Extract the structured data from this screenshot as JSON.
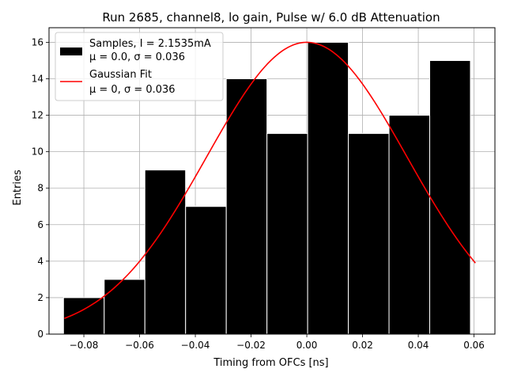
{
  "chart_data": {
    "type": "bar",
    "title": "Run 2685, channel8, lo gain, Pulse w/ 6.0 dB Attenuation",
    "xlabel": "Timing from OFCs [ns]",
    "ylabel": "Entries",
    "xlim": [
      -0.0925,
      0.0675
    ],
    "ylim": [
      0,
      16.8
    ],
    "grid": true,
    "xticks": [
      -0.08,
      -0.06,
      -0.04,
      -0.02,
      0.0,
      0.02,
      0.04,
      0.06
    ],
    "xtick_labels": [
      "−0.08",
      "−0.06",
      "−0.04",
      "−0.02",
      "0.00",
      "0.02",
      "0.04",
      "0.06"
    ],
    "yticks": [
      0,
      2,
      4,
      6,
      8,
      10,
      12,
      14,
      16
    ],
    "ytick_labels": [
      "0",
      "2",
      "4",
      "6",
      "8",
      "10",
      "12",
      "14",
      "16"
    ],
    "histogram": {
      "name": "Samples, I = 2.1535mA",
      "stats": "μ = 0.0, σ = 0.036",
      "bin_edges": [
        -0.0873,
        -0.0727,
        -0.0581,
        -0.0435,
        -0.0289,
        -0.0143,
        0.0003,
        0.0149,
        0.0295,
        0.0441,
        0.0587
      ],
      "values": [
        2,
        3,
        9,
        7,
        14,
        11,
        16,
        11,
        12,
        15
      ],
      "color": "#000000",
      "edgecolor": "#ffffff"
    },
    "fit": {
      "name": "Gaussian Fit",
      "stats": "μ = 0, σ = 0.036",
      "mu": 0.0,
      "sigma": 0.036,
      "amplitude": 16.0,
      "x_range": [
        -0.087,
        0.0605
      ],
      "color": "#ff0000"
    },
    "legend": {
      "placement": "upper-left",
      "entries": [
        {
          "label": "Samples, I = 2.1535mA",
          "sublabel": "μ = 0.0, σ = 0.036"
        },
        {
          "label": "Gaussian Fit",
          "sublabel": "μ = 0, σ = 0.036"
        }
      ]
    }
  }
}
